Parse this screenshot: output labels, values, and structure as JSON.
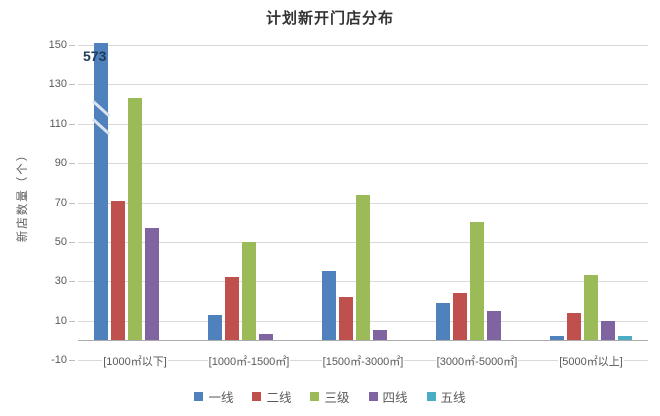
{
  "title": "计划新开门店分布",
  "y_axis_title": "新店数量（个）",
  "chart_data": {
    "type": "bar",
    "title": "计划新开门店分布",
    "xlabel": "",
    "ylabel": "新店数量（个）",
    "ylim": [
      -10,
      150
    ],
    "yticks": [
      150,
      130,
      110,
      90,
      70,
      50,
      30,
      10,
      -10
    ],
    "grid": true,
    "legend_position": "bottom",
    "categories": [
      "[1000㎡以下]",
      "[1000㎡-1500㎡]",
      "[1500㎡-3000㎡]",
      "[3000㎡-5000㎡]",
      "[5000㎡以上]"
    ],
    "series": [
      {
        "name": "一线",
        "color": "#4f81bd",
        "values": [
          573,
          13,
          35,
          19,
          2
        ]
      },
      {
        "name": "二线",
        "color": "#c0504d",
        "values": [
          71,
          32,
          22,
          24,
          14
        ]
      },
      {
        "name": "三级",
        "color": "#9bbb59",
        "values": [
          123,
          50,
          74,
          60,
          33
        ]
      },
      {
        "name": "四线",
        "color": "#8064a2",
        "values": [
          57,
          3,
          5,
          15,
          10
        ]
      },
      {
        "name": "五线",
        "color": "#4bacc6",
        "values": [
          0,
          0,
          0,
          0,
          2
        ]
      }
    ],
    "clipped_bar": {
      "series_index": 0,
      "category_index": 0,
      "true_value": 573,
      "label": "573",
      "display_cap": 151,
      "axis_break": true
    }
  },
  "colors": {
    "grid": "#d9d9d9",
    "zero_axis": "#ababab",
    "tick_text": "#595959",
    "title_text": "#333333",
    "bar_label_text": "#1e3a5c",
    "break_mark": "#d9e2f0"
  }
}
